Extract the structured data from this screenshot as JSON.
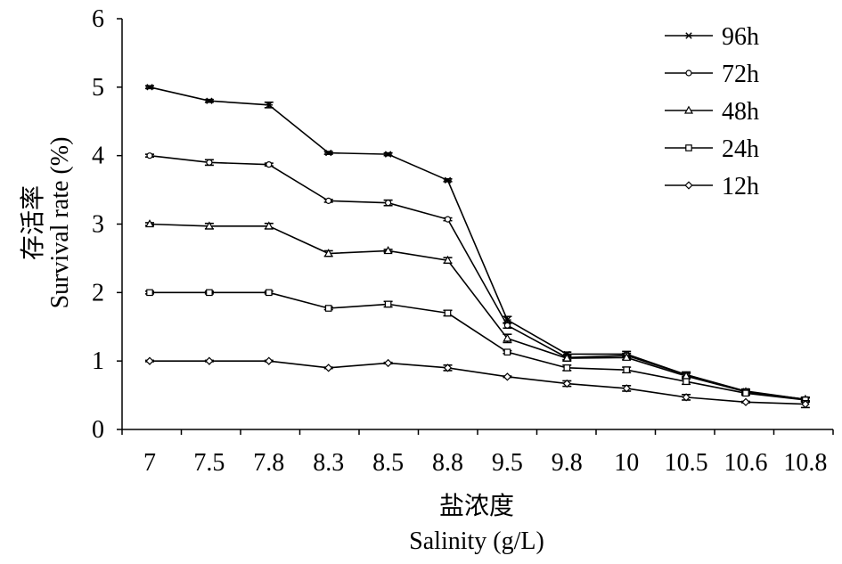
{
  "chart_data": {
    "type": "line",
    "title": "",
    "xlabel_cn": "盐浓度",
    "xlabel_en": "Salinity (g/L)",
    "ylabel_cn": "存活率",
    "ylabel_en": "Survival rate (%)",
    "categories": [
      "7",
      "7.5",
      "7.8",
      "8.3",
      "8.5",
      "8.8",
      "9.5",
      "9.8",
      "10",
      "10.5",
      "10.6",
      "10.8"
    ],
    "ylim": [
      0,
      6
    ],
    "yticks": [
      "0",
      "1",
      "2",
      "3",
      "4",
      "5",
      "6"
    ],
    "grid": false,
    "legend_position": "top-right",
    "series": [
      {
        "name": "96h",
        "marker": "star",
        "values": [
          5.0,
          4.8,
          4.74,
          4.04,
          4.02,
          3.64,
          1.6,
          1.1,
          1.1,
          0.8,
          0.56,
          0.44
        ],
        "errors": [
          0.02,
          0.02,
          0.04,
          0.02,
          0.02,
          0.02,
          0.05,
          0.03,
          0.04,
          0.04,
          0.03,
          0.03
        ]
      },
      {
        "name": "72h",
        "marker": "circle",
        "values": [
          4.0,
          3.9,
          3.87,
          3.34,
          3.31,
          3.07,
          1.52,
          1.05,
          1.08,
          0.8,
          0.55,
          0.44
        ],
        "errors": [
          0.02,
          0.04,
          0.02,
          0.02,
          0.04,
          0.02,
          0.04,
          0.03,
          0.03,
          0.03,
          0.03,
          0.03
        ]
      },
      {
        "name": "48h",
        "marker": "triangle",
        "values": [
          3.0,
          2.97,
          2.97,
          2.57,
          2.61,
          2.47,
          1.33,
          1.04,
          1.05,
          0.78,
          0.55,
          0.44
        ],
        "errors": [
          0.02,
          0.04,
          0.04,
          0.04,
          0.02,
          0.04,
          0.06,
          0.04,
          0.03,
          0.04,
          0.03,
          0.03
        ]
      },
      {
        "name": "24h",
        "marker": "square",
        "values": [
          2.0,
          2.0,
          2.0,
          1.77,
          1.83,
          1.7,
          1.13,
          0.9,
          0.87,
          0.7,
          0.53,
          0.43
        ],
        "errors": [
          0.02,
          0.02,
          0.02,
          0.02,
          0.04,
          0.04,
          0.02,
          0.04,
          0.04,
          0.04,
          0.03,
          0.03
        ]
      },
      {
        "name": "12h",
        "marker": "diamond",
        "values": [
          1.0,
          1.0,
          1.0,
          0.9,
          0.97,
          0.9,
          0.77,
          0.67,
          0.6,
          0.47,
          0.4,
          0.37
        ],
        "errors": [
          0.01,
          0.01,
          0.01,
          0.01,
          0.01,
          0.04,
          0.01,
          0.04,
          0.04,
          0.04,
          0.01,
          0.05
        ]
      }
    ]
  }
}
